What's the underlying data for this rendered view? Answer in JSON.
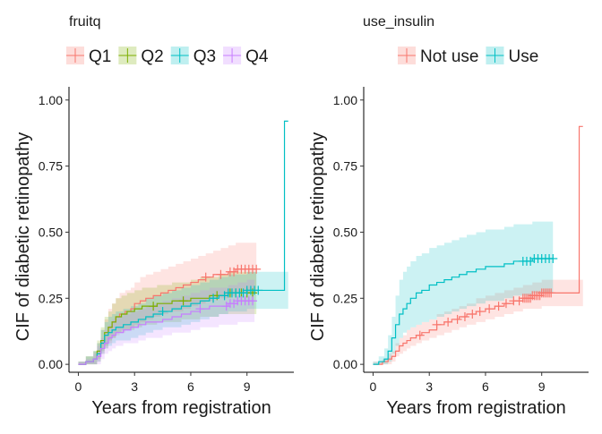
{
  "chart_data": [
    {
      "type": "line",
      "subtype": "cumulative incidence (step) with confidence bands and censor marks",
      "xlabel": "Years from registration",
      "ylabel": "CIF of diabetic retinopathy",
      "xticks": [
        0,
        3,
        6,
        9
      ],
      "yticks": [
        "0.00",
        "0.25",
        "0.50",
        "0.75",
        "1.00"
      ],
      "xlim": [
        -0.5,
        11.5
      ],
      "ylim": [
        -0.03,
        1.05
      ],
      "legend_title": "fruitq",
      "legend_position": "top",
      "series": [
        {
          "name": "Q1",
          "color": "#F8766D",
          "x": [
            0,
            0.4,
            0.8,
            1.0,
            1.2,
            1.4,
            1.6,
            1.8,
            2.0,
            2.2,
            2.5,
            2.8,
            3.0,
            3.3,
            3.6,
            4.0,
            4.4,
            4.8,
            5.2,
            5.6,
            6.0,
            6.4,
            6.8,
            7.2,
            7.6,
            8.0,
            8.4,
            8.8,
            9.2,
            9.5
          ],
          "y": [
            0,
            0.01,
            0.02,
            0.04,
            0.08,
            0.11,
            0.14,
            0.16,
            0.18,
            0.19,
            0.2,
            0.21,
            0.23,
            0.24,
            0.25,
            0.26,
            0.27,
            0.28,
            0.29,
            0.3,
            0.31,
            0.32,
            0.33,
            0.34,
            0.34,
            0.35,
            0.36,
            0.36,
            0.36,
            0.36
          ],
          "lower": [
            0,
            0,
            0,
            0.01,
            0.04,
            0.06,
            0.08,
            0.1,
            0.11,
            0.12,
            0.13,
            0.14,
            0.15,
            0.16,
            0.17,
            0.18,
            0.19,
            0.2,
            0.2,
            0.21,
            0.22,
            0.23,
            0.24,
            0.25,
            0.25,
            0.26,
            0.27,
            0.27,
            0.27,
            0.27
          ],
          "upper": [
            0.01,
            0.03,
            0.05,
            0.08,
            0.13,
            0.17,
            0.21,
            0.23,
            0.25,
            0.27,
            0.28,
            0.29,
            0.31,
            0.33,
            0.34,
            0.35,
            0.36,
            0.37,
            0.38,
            0.39,
            0.4,
            0.41,
            0.42,
            0.43,
            0.44,
            0.45,
            0.46,
            0.46,
            0.46,
            0.46
          ],
          "censor_x": [
            6.8,
            7.6,
            8.1,
            8.3,
            8.5,
            8.7,
            8.9,
            9.1,
            9.3,
            9.5
          ]
        },
        {
          "name": "Q2",
          "color": "#7CAE00",
          "x": [
            0,
            0.4,
            0.8,
            1.0,
            1.2,
            1.4,
            1.6,
            1.8,
            2.0,
            2.3,
            2.6,
            3.0,
            3.4,
            3.8,
            4.2,
            4.6,
            5.0,
            5.5,
            6.0,
            6.5,
            7.0,
            7.5,
            8.0,
            8.5,
            9.0,
            9.5
          ],
          "y": [
            0,
            0.01,
            0.02,
            0.05,
            0.09,
            0.12,
            0.14,
            0.16,
            0.18,
            0.19,
            0.2,
            0.21,
            0.22,
            0.22,
            0.23,
            0.23,
            0.24,
            0.24,
            0.25,
            0.25,
            0.26,
            0.26,
            0.27,
            0.27,
            0.27,
            0.27
          ],
          "lower": [
            0,
            0,
            0,
            0.02,
            0.05,
            0.07,
            0.09,
            0.1,
            0.12,
            0.13,
            0.13,
            0.14,
            0.15,
            0.15,
            0.16,
            0.16,
            0.16,
            0.17,
            0.17,
            0.18,
            0.18,
            0.19,
            0.19,
            0.19,
            0.19,
            0.19
          ],
          "upper": [
            0.01,
            0.03,
            0.05,
            0.09,
            0.14,
            0.18,
            0.2,
            0.23,
            0.25,
            0.26,
            0.27,
            0.28,
            0.29,
            0.29,
            0.3,
            0.3,
            0.31,
            0.31,
            0.32,
            0.33,
            0.33,
            0.34,
            0.35,
            0.35,
            0.35,
            0.35
          ],
          "censor_x": [
            4.0,
            5.6,
            7.4,
            8.1,
            8.4,
            8.7,
            9.0,
            9.3
          ]
        },
        {
          "name": "Q3",
          "color": "#00BFC4",
          "x": [
            0,
            0.4,
            0.8,
            1.0,
            1.2,
            1.4,
            1.6,
            1.8,
            2.0,
            2.4,
            2.8,
            3.2,
            3.6,
            4.0,
            4.5,
            5.0,
            5.5,
            6.0,
            6.5,
            7.0,
            7.5,
            8.0,
            8.5,
            9.0,
            9.6,
            11.0,
            11.0,
            11.2
          ],
          "y": [
            0,
            0.01,
            0.02,
            0.04,
            0.08,
            0.11,
            0.12,
            0.13,
            0.14,
            0.15,
            0.16,
            0.17,
            0.18,
            0.19,
            0.2,
            0.21,
            0.22,
            0.23,
            0.24,
            0.25,
            0.26,
            0.27,
            0.27,
            0.28,
            0.28,
            0.28,
            0.92,
            0.92
          ],
          "lower": [
            0,
            0,
            0,
            0.01,
            0.04,
            0.06,
            0.07,
            0.08,
            0.09,
            0.09,
            0.1,
            0.11,
            0.12,
            0.13,
            0.14,
            0.14,
            0.15,
            0.16,
            0.17,
            0.18,
            0.19,
            0.2,
            0.2,
            0.21,
            0.21,
            0.21,
            0.21,
            0.21
          ],
          "upper": [
            0.01,
            0.03,
            0.05,
            0.08,
            0.13,
            0.16,
            0.18,
            0.19,
            0.2,
            0.21,
            0.22,
            0.23,
            0.25,
            0.26,
            0.27,
            0.28,
            0.29,
            0.3,
            0.31,
            0.32,
            0.33,
            0.34,
            0.34,
            0.35,
            0.35,
            0.35,
            0.35,
            0.35
          ],
          "censor_x": [
            4.5,
            7.2,
            7.8,
            8.0,
            8.2,
            8.4,
            8.6,
            8.8,
            9.0,
            9.2,
            9.4,
            9.6
          ]
        },
        {
          "name": "Q4",
          "color": "#C77CFF",
          "x": [
            0,
            0.4,
            0.8,
            1.0,
            1.2,
            1.4,
            1.6,
            1.8,
            2.0,
            2.4,
            2.8,
            3.2,
            3.6,
            4.0,
            4.5,
            5.0,
            5.5,
            6.0,
            6.5,
            7.0,
            7.5,
            8.0,
            8.5,
            9.0,
            9.4
          ],
          "y": [
            0,
            0.01,
            0.02,
            0.03,
            0.06,
            0.08,
            0.1,
            0.11,
            0.12,
            0.13,
            0.14,
            0.15,
            0.16,
            0.16,
            0.17,
            0.18,
            0.19,
            0.2,
            0.21,
            0.22,
            0.22,
            0.23,
            0.24,
            0.24,
            0.24
          ],
          "lower": [
            0,
            0,
            0,
            0,
            0.02,
            0.04,
            0.05,
            0.06,
            0.07,
            0.08,
            0.08,
            0.09,
            0.1,
            0.1,
            0.11,
            0.12,
            0.12,
            0.13,
            0.14,
            0.14,
            0.15,
            0.15,
            0.16,
            0.16,
            0.16
          ],
          "upper": [
            0.01,
            0.02,
            0.04,
            0.07,
            0.1,
            0.13,
            0.15,
            0.17,
            0.18,
            0.19,
            0.2,
            0.21,
            0.22,
            0.23,
            0.24,
            0.25,
            0.26,
            0.27,
            0.28,
            0.29,
            0.29,
            0.3,
            0.31,
            0.32,
            0.32
          ],
          "censor_x": [
            6.5,
            7.9,
            8.1,
            8.3,
            8.5,
            8.7,
            8.9,
            9.1,
            9.3
          ]
        }
      ]
    },
    {
      "type": "line",
      "subtype": "cumulative incidence (step) with confidence bands and censor marks",
      "xlabel": "Years from registration",
      "ylabel": "CIF of diabetic retinopathy",
      "xticks": [
        0,
        3,
        6,
        9
      ],
      "yticks": [
        "0.00",
        "0.25",
        "0.50",
        "0.75",
        "1.00"
      ],
      "xlim": [
        -0.5,
        11.5
      ],
      "ylim": [
        -0.03,
        1.05
      ],
      "legend_title": "use_insulin",
      "legend_position": "top",
      "series": [
        {
          "name": "Not use",
          "color": "#F8766D",
          "x": [
            0,
            0.5,
            0.8,
            1.0,
            1.2,
            1.4,
            1.6,
            1.8,
            2.0,
            2.3,
            2.6,
            3.0,
            3.4,
            3.8,
            4.2,
            4.6,
            5.0,
            5.5,
            6.0,
            6.5,
            7.0,
            7.5,
            8.0,
            8.5,
            9.0,
            9.5,
            11.0,
            11.0,
            11.2
          ],
          "y": [
            0,
            0.01,
            0.02,
            0.03,
            0.05,
            0.07,
            0.08,
            0.09,
            0.1,
            0.11,
            0.12,
            0.13,
            0.15,
            0.16,
            0.17,
            0.18,
            0.19,
            0.2,
            0.21,
            0.22,
            0.23,
            0.24,
            0.25,
            0.26,
            0.27,
            0.27,
            0.27,
            0.9,
            0.9
          ],
          "lower": [
            0,
            0,
            0,
            0.01,
            0.03,
            0.04,
            0.05,
            0.06,
            0.07,
            0.08,
            0.09,
            0.1,
            0.11,
            0.12,
            0.13,
            0.14,
            0.15,
            0.16,
            0.17,
            0.18,
            0.19,
            0.2,
            0.21,
            0.21,
            0.22,
            0.22,
            0.22,
            0.22,
            0.22
          ],
          "upper": [
            0.01,
            0.02,
            0.04,
            0.05,
            0.08,
            0.1,
            0.11,
            0.13,
            0.14,
            0.15,
            0.16,
            0.17,
            0.19,
            0.2,
            0.21,
            0.22,
            0.23,
            0.25,
            0.26,
            0.27,
            0.28,
            0.29,
            0.3,
            0.31,
            0.32,
            0.32,
            0.32,
            0.32,
            0.32
          ],
          "censor_x": [
            2.5,
            3.4,
            4.0,
            4.5,
            4.9,
            5.3,
            5.7,
            6.2,
            6.7,
            7.1,
            7.5,
            7.8,
            8.0,
            8.1,
            8.2,
            8.3,
            8.4,
            8.5,
            8.6,
            8.7,
            8.8,
            8.9,
            9.0,
            9.1,
            9.2,
            9.3,
            9.4,
            9.5
          ]
        },
        {
          "name": "Use",
          "color": "#00BFC4",
          "x": [
            0,
            0.3,
            0.6,
            0.8,
            1.0,
            1.2,
            1.4,
            1.6,
            1.8,
            2.0,
            2.3,
            2.6,
            3.0,
            3.4,
            3.8,
            4.2,
            4.6,
            5.0,
            5.5,
            6.0,
            6.5,
            7.0,
            7.5,
            8.0,
            8.5,
            9.0,
            9.6
          ],
          "y": [
            0,
            0.01,
            0.02,
            0.05,
            0.1,
            0.15,
            0.19,
            0.21,
            0.23,
            0.25,
            0.27,
            0.28,
            0.3,
            0.31,
            0.32,
            0.33,
            0.34,
            0.35,
            0.36,
            0.37,
            0.37,
            0.38,
            0.39,
            0.39,
            0.4,
            0.4,
            0.4
          ],
          "lower": [
            0,
            0,
            0,
            0.01,
            0.04,
            0.07,
            0.1,
            0.12,
            0.13,
            0.14,
            0.15,
            0.16,
            0.17,
            0.18,
            0.19,
            0.2,
            0.21,
            0.22,
            0.23,
            0.24,
            0.24,
            0.25,
            0.26,
            0.26,
            0.27,
            0.27,
            0.27
          ],
          "upper": [
            0.01,
            0.03,
            0.06,
            0.11,
            0.18,
            0.26,
            0.32,
            0.35,
            0.37,
            0.39,
            0.41,
            0.42,
            0.44,
            0.45,
            0.46,
            0.47,
            0.48,
            0.49,
            0.5,
            0.51,
            0.51,
            0.52,
            0.53,
            0.53,
            0.54,
            0.54,
            0.54
          ],
          "censor_x": [
            8.0,
            8.2,
            8.4,
            8.6,
            8.8,
            9.0,
            9.2,
            9.4,
            9.6
          ]
        }
      ]
    }
  ]
}
